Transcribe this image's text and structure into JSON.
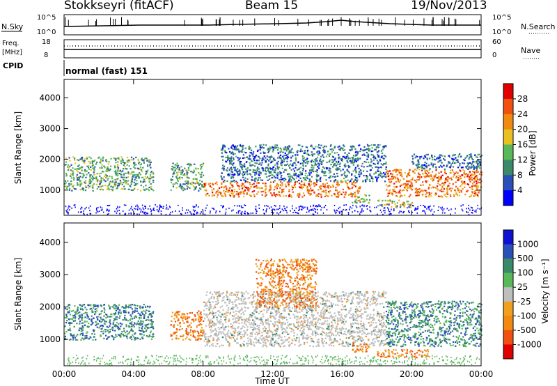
{
  "header": {
    "station": "Stokkseyri (fitACF)",
    "beam": "Beam 15",
    "date": "19/Nov/2013"
  },
  "panels": {
    "nsky": {
      "label": "N.Sky",
      "right_label": "N.Search",
      "left_ticks": [
        "10^5",
        "10^0"
      ],
      "right_ticks": [
        "10^5",
        "10^0"
      ]
    },
    "freq": {
      "label_line1": "Freq.",
      "label_line2": "[MHz]",
      "right_label": "Nave",
      "left_ticks": [
        "18",
        "8"
      ],
      "right_ticks": [
        "60",
        "0"
      ]
    },
    "cpid": {
      "label": "CPID",
      "value": "normal (fast) 151"
    }
  },
  "chart_data": [
    {
      "type": "heatmap",
      "panel": "power",
      "ylabel": "Slant Range [km]",
      "xlabel": "",
      "ylim": [
        180,
        4600
      ],
      "yticks": [
        "1000",
        "2000",
        "3000",
        "4000"
      ],
      "colorbar": {
        "label": "Power [dB]",
        "ticks": [
          "4",
          "8",
          "12",
          "16",
          "20",
          "24",
          "28"
        ],
        "range": [
          0,
          32
        ]
      },
      "echo_regions": [
        {
          "t0": 0.0,
          "t1": 5.1,
          "r0": 1000,
          "r1": 2100,
          "level": 12
        },
        {
          "t0": 6.1,
          "t1": 8.0,
          "r0": 1000,
          "r1": 1900,
          "level": 10
        },
        {
          "t0": 8.0,
          "t1": 17.0,
          "r0": 800,
          "r1": 1300,
          "level": 24
        },
        {
          "t0": 9.0,
          "t1": 18.5,
          "r0": 1300,
          "r1": 2500,
          "level": 8
        },
        {
          "t0": 16.5,
          "t1": 17.6,
          "r0": 600,
          "r1": 900,
          "level": 14
        },
        {
          "t0": 18.0,
          "t1": 20.0,
          "r0": 450,
          "r1": 700,
          "level": 16
        },
        {
          "t0": 18.5,
          "t1": 24.0,
          "r0": 800,
          "r1": 1700,
          "level": 22
        },
        {
          "t0": 20.0,
          "t1": 24.0,
          "r0": 1700,
          "r1": 2200,
          "level": 8
        }
      ]
    },
    {
      "type": "heatmap",
      "panel": "velocity",
      "ylabel": "Slant Range [km]",
      "xlabel": "Time UT",
      "ylim": [
        180,
        4600
      ],
      "yticks": [
        "1000",
        "2000",
        "3000",
        "4000"
      ],
      "xticks": [
        "00:00",
        "04:00",
        "08:00",
        "12:00",
        "16:00",
        "20:00",
        "00:00"
      ],
      "colorbar": {
        "label": "Velocity [m s⁻¹]",
        "ticks": [
          "1000",
          "500",
          "100",
          "25",
          "-25",
          "-100",
          "-500",
          "-1000"
        ]
      },
      "echo_regions": [
        {
          "t0": 0.0,
          "t1": 5.1,
          "r0": 1000,
          "r1": 2100,
          "class": "positive"
        },
        {
          "t0": 6.1,
          "t1": 8.0,
          "r0": 1000,
          "r1": 1900,
          "class": "negative"
        },
        {
          "t0": 8.0,
          "t1": 18.5,
          "r0": 800,
          "r1": 2500,
          "class": "ground_scatter"
        },
        {
          "t0": 11.0,
          "t1": 14.5,
          "r0": 2000,
          "r1": 3500,
          "class": "negative"
        },
        {
          "t0": 16.5,
          "t1": 17.6,
          "r0": 600,
          "r1": 900,
          "class": "negative"
        },
        {
          "t0": 18.0,
          "t1": 21.0,
          "r0": 450,
          "r1": 700,
          "class": "negative"
        },
        {
          "t0": 18.5,
          "t1": 24.0,
          "r0": 800,
          "r1": 2200,
          "class": "positive"
        }
      ]
    }
  ],
  "colors": {
    "power_scale": [
      "#0000ff",
      "#2a4fb8",
      "#3a8a6a",
      "#59b95a",
      "#e8c020",
      "#f08a10",
      "#f05010",
      "#e00000"
    ],
    "velocity_scale": [
      "#e00000",
      "#f05010",
      "#f08a10",
      "#f0a020",
      "#bebebe",
      "#59b95a",
      "#3a8a6a",
      "#2a4fb8",
      "#1010d0"
    ]
  }
}
